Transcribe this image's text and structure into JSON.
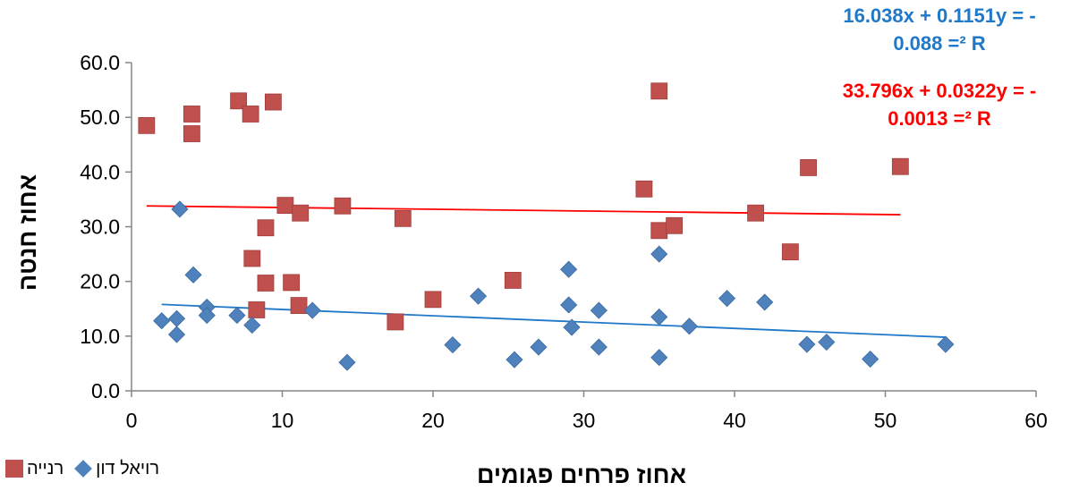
{
  "chart_data": {
    "type": "scatter",
    "xlabel": "אחוז פרחים פגומים",
    "ylabel": "אחוז חנטה",
    "xlim": [
      0,
      60
    ],
    "ylim": [
      0,
      60
    ],
    "x_ticks": [
      "0",
      "10",
      "20",
      "30",
      "40",
      "50",
      "60"
    ],
    "y_ticks": [
      "0.0",
      "10.0",
      "20.0",
      "30.0",
      "40.0",
      "50.0",
      "60.0"
    ],
    "grid": false,
    "legend_position": "bottom-left",
    "series": [
      {
        "name": "רויאל דון",
        "marker": "diamond",
        "color": "#4f81bd",
        "points": [
          [
            2,
            12.8
          ],
          [
            3,
            13.2
          ],
          [
            3,
            10.3
          ],
          [
            3.2,
            33.2
          ],
          [
            4.1,
            21.2
          ],
          [
            5,
            15.3
          ],
          [
            5,
            13.8
          ],
          [
            7,
            13.8
          ],
          [
            8,
            12.0
          ],
          [
            12,
            14.7
          ],
          [
            14.3,
            5.2
          ],
          [
            21.3,
            8.4
          ],
          [
            23,
            17.3
          ],
          [
            25.4,
            5.7
          ],
          [
            27,
            8.0
          ],
          [
            29,
            22.2
          ],
          [
            29,
            15.7
          ],
          [
            29.2,
            11.6
          ],
          [
            31,
            14.7
          ],
          [
            31,
            8.0
          ],
          [
            35,
            25.0
          ],
          [
            35,
            13.5
          ],
          [
            35,
            6.1
          ],
          [
            37,
            11.8
          ],
          [
            39.5,
            16.9
          ],
          [
            42,
            16.2
          ],
          [
            44.8,
            8.5
          ],
          [
            46.1,
            8.9
          ],
          [
            49,
            5.8
          ],
          [
            54,
            8.5
          ]
        ],
        "trendline": {
          "x": [
            2,
            54
          ],
          "y": [
            15.8,
            9.8
          ],
          "color": "#1f78c8"
        }
      },
      {
        "name": "רנייה",
        "marker": "square",
        "color": "#c0504d",
        "points": [
          [
            1,
            48.5
          ],
          [
            4,
            50.6
          ],
          [
            4,
            47.0
          ],
          [
            7.1,
            53.0
          ],
          [
            7.9,
            50.6
          ],
          [
            8,
            24.2
          ],
          [
            8.3,
            14.8
          ],
          [
            8.9,
            29.8
          ],
          [
            8.9,
            19.7
          ],
          [
            9.4,
            52.8
          ],
          [
            10.2,
            33.9
          ],
          [
            10.6,
            19.8
          ],
          [
            11.2,
            32.5
          ],
          [
            11.1,
            15.6
          ],
          [
            14,
            33.8
          ],
          [
            17.5,
            12.6
          ],
          [
            18,
            31.5
          ],
          [
            20,
            16.7
          ],
          [
            25.3,
            20.2
          ],
          [
            34,
            36.9
          ],
          [
            35,
            54.8
          ],
          [
            35,
            29.3
          ],
          [
            36,
            30.2
          ],
          [
            41.4,
            32.5
          ],
          [
            43.7,
            25.4
          ],
          [
            44.9,
            40.8
          ],
          [
            51,
            41.0
          ]
        ],
        "trendline": {
          "x": [
            1,
            51
          ],
          "y": [
            33.8,
            32.2
          ],
          "color": "#ff0000"
        }
      }
    ],
    "annotations": [
      {
        "lines": [
          "16.038x + 0.1151y = -",
          "0.088 =² R"
        ],
        "color": "#1f78c8"
      },
      {
        "lines": [
          "33.796x + 0.0322y = -",
          "0.0013 =² R"
        ],
        "color": "#ff0000"
      }
    ]
  }
}
